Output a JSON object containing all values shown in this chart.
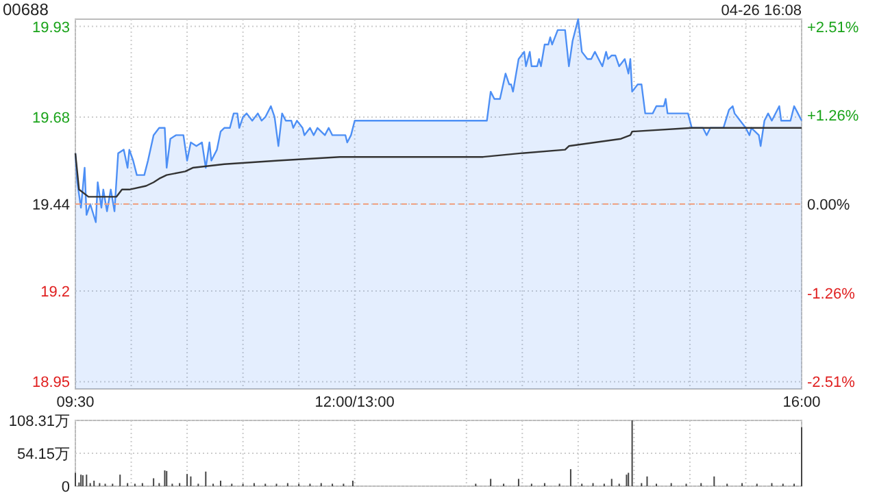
{
  "chart_data": [
    {
      "type": "area",
      "title": "00688",
      "subtitle": "04-26 16:08",
      "xlim": [
        9.5,
        16
      ],
      "ylim": [
        18.93,
        19.95
      ],
      "xticks": [
        {
          "value": 9.5,
          "label": "09:30"
        },
        {
          "value": 10,
          "label": null
        },
        {
          "value": 10.5,
          "label": null
        },
        {
          "value": 11,
          "label": null
        },
        {
          "value": 11.5,
          "label": null
        },
        {
          "value": 12,
          "label": "12:00/13:00"
        },
        {
          "value": 13,
          "label": null
        },
        {
          "value": 13.5,
          "label": null
        },
        {
          "value": 14,
          "label": null
        },
        {
          "value": 14.5,
          "label": null
        },
        {
          "value": 15,
          "label": null
        },
        {
          "value": 15.5,
          "label": null
        },
        {
          "value": 16,
          "label": "16:00"
        }
      ],
      "yticks": [
        18.95,
        19.2,
        19.44,
        19.68,
        19.93
      ],
      "y2lim": [
        -2.62,
        2.62
      ],
      "y2ticks": [
        {
          "value": -2.51,
          "label": "-2.51%"
        },
        {
          "value": -1.26,
          "label": "-1.26%"
        },
        {
          "value": 0,
          "label": "0.00%"
        },
        {
          "value": 1.26,
          "label": "+1.26%"
        },
        {
          "value": 2.51,
          "label": "+2.51%"
        }
      ],
      "grid": true,
      "ref_lines": [
        {
          "axis": "y",
          "value": 19.44,
          "label": null,
          "color": "#f0a080",
          "line_style": "dashed"
        }
      ],
      "series": [
        {
          "color": "#4d8ff5",
          "x": [
            9.5,
            9.517,
            9.55,
            9.583,
            9.6,
            9.633,
            9.683,
            9.7,
            9.733,
            9.75,
            9.783,
            9.817,
            9.85,
            9.883,
            9.933,
            9.967,
            9.983,
            10.017,
            10.05,
            10.117,
            10.15,
            10.2,
            10.25,
            10.3,
            10.317,
            10.35,
            10.4,
            10.467,
            10.5,
            10.533,
            10.583,
            10.633,
            10.667,
            10.7,
            10.717,
            10.767,
            10.8,
            10.833,
            10.883,
            10.917,
            10.95,
            10.967,
            11,
            11.033,
            11.083,
            11.133,
            11.167,
            11.2,
            11.25,
            11.283,
            11.317,
            11.35,
            11.383,
            11.433,
            11.45,
            11.483,
            11.533,
            11.55,
            11.6,
            11.633,
            11.667,
            11.733,
            11.767,
            11.8,
            11.917,
            11.933,
            11.967,
            12,
            13.083,
            13.183,
            13.217,
            13.25,
            13.3,
            13.35,
            13.383,
            13.4,
            13.417,
            13.467,
            13.517,
            13.533,
            13.567,
            13.583,
            13.633,
            13.65,
            13.667,
            13.7,
            13.733,
            13.75,
            13.767,
            13.817,
            13.883,
            13.917,
            13.95,
            14,
            14.033,
            14.083,
            14.117,
            14.15,
            14.183,
            14.217,
            14.25,
            14.267,
            14.3,
            14.333,
            14.367,
            14.417,
            14.45,
            14.467,
            14.483,
            14.533,
            14.567,
            14.6,
            14.667,
            14.7,
            14.767,
            14.783,
            14.8,
            14.983,
            15.017,
            15.117,
            15.15,
            15.183,
            15.3,
            15.35,
            15.383,
            15.4,
            15.45,
            15.5,
            15.533,
            15.55,
            15.617,
            15.633,
            15.667,
            15.7,
            15.733,
            15.8,
            15.817,
            15.9,
            15.933,
            15.967,
            16
          ],
          "values": [
            19.58,
            19.5,
            19.43,
            19.54,
            19.41,
            19.44,
            19.39,
            19.5,
            19.43,
            19.48,
            19.42,
            19.48,
            19.42,
            19.58,
            19.59,
            19.54,
            19.59,
            19.56,
            19.52,
            19.52,
            19.56,
            19.63,
            19.65,
            19.65,
            19.54,
            19.62,
            19.63,
            19.63,
            19.56,
            19.61,
            19.6,
            19.61,
            19.54,
            19.61,
            19.56,
            19.59,
            19.64,
            19.65,
            19.65,
            19.69,
            19.69,
            19.65,
            19.68,
            19.69,
            19.67,
            19.69,
            19.67,
            19.68,
            19.71,
            19.68,
            19.6,
            19.69,
            19.67,
            19.67,
            19.65,
            19.67,
            19.65,
            19.63,
            19.65,
            19.63,
            19.65,
            19.63,
            19.65,
            19.63,
            19.63,
            19.61,
            19.63,
            19.67,
            19.67,
            19.67,
            19.75,
            19.73,
            19.73,
            19.8,
            19.77,
            19.77,
            19.75,
            19.84,
            19.86,
            19.82,
            19.86,
            19.82,
            19.82,
            19.84,
            19.82,
            19.88,
            19.88,
            19.9,
            19.88,
            19.92,
            19.92,
            19.82,
            19.89,
            19.95,
            19.86,
            19.84,
            19.84,
            19.86,
            19.84,
            19.82,
            19.86,
            19.84,
            19.85,
            19.85,
            19.82,
            19.84,
            19.8,
            19.84,
            19.75,
            19.77,
            19.77,
            19.69,
            19.69,
            19.71,
            19.71,
            19.73,
            19.69,
            19.69,
            19.65,
            19.65,
            19.63,
            19.65,
            19.65,
            19.7,
            19.71,
            19.69,
            19.67,
            19.65,
            19.63,
            19.65,
            19.63,
            19.6,
            19.67,
            19.69,
            19.67,
            19.71,
            19.67,
            19.67,
            19.71,
            19.69,
            19.67
          ]
        },
        {
          "type": "line",
          "color": "#333333",
          "x": [
            9.5,
            9.533,
            9.617,
            9.733,
            9.867,
            9.917,
            9.983,
            10.133,
            10.2,
            10.25,
            10.317,
            10.483,
            10.55,
            10.833,
            11.317,
            11.867,
            13.15,
            13.483,
            13.883,
            13.917,
            14.383,
            14.467,
            14.483,
            15.017,
            16
          ],
          "values": [
            19.58,
            19.48,
            19.46,
            19.46,
            19.46,
            19.48,
            19.48,
            19.49,
            19.5,
            19.51,
            19.52,
            19.53,
            19.54,
            19.55,
            19.56,
            19.57,
            19.57,
            19.58,
            19.59,
            19.6,
            19.62,
            19.63,
            19.64,
            19.65,
            19.65
          ]
        }
      ]
    },
    {
      "type": "bar",
      "xlim": [
        9.5,
        16
      ],
      "ylim": [
        0,
        108.31
      ],
      "xticks": [
        9.5,
        10,
        10.5,
        11,
        11.5,
        12,
        13,
        13.5,
        14,
        14.5,
        15,
        15.5,
        16
      ],
      "yticks": [
        {
          "value": 0,
          "label": "0"
        },
        {
          "value": 54.15,
          "label": "54.15万"
        },
        {
          "value": 108.31,
          "label": "108.31万"
        }
      ],
      "tick_labels": "y",
      "grid": true,
      "series": [
        {
          "color": "#444444",
          "x": [
            9.5,
            9.533,
            9.55,
            9.567,
            9.6,
            9.633,
            9.667,
            9.717,
            9.767,
            9.833,
            9.9,
            9.967,
            10.033,
            10.1,
            10.2,
            10.25,
            10.3,
            10.317,
            10.367,
            10.433,
            10.5,
            10.533,
            10.6,
            10.667,
            10.733,
            10.8,
            10.9,
            11,
            11.1,
            11.2,
            11.3,
            11.4,
            11.5,
            11.6,
            11.7,
            11.8,
            11.9,
            11.983,
            13.083,
            13.217,
            13.333,
            13.467,
            13.583,
            13.7,
            13.833,
            13.933,
            14.033,
            14.133,
            14.233,
            14.3,
            14.367,
            14.433,
            14.45,
            14.483,
            14.567,
            14.617,
            14.7,
            14.833,
            14.967,
            15.1,
            15.217,
            15.333,
            15.467,
            15.6,
            15.733,
            15.833,
            15.933,
            16
          ],
          "values": [
            22,
            6,
            19,
            18,
            19,
            5,
            9,
            5,
            4,
            4,
            19,
            5,
            4,
            5,
            13,
            5,
            26,
            25,
            4,
            5,
            20,
            16,
            4,
            24,
            4,
            9,
            4,
            4,
            5,
            4,
            4,
            5,
            4,
            4,
            5,
            4,
            4,
            9,
            4,
            12,
            4,
            12,
            4,
            5,
            4,
            28,
            4,
            5,
            4,
            12,
            4,
            19,
            22,
            108.31,
            5,
            16,
            4,
            5,
            4,
            5,
            16,
            4,
            5,
            4,
            5,
            4,
            4,
            97
          ]
        }
      ]
    }
  ]
}
